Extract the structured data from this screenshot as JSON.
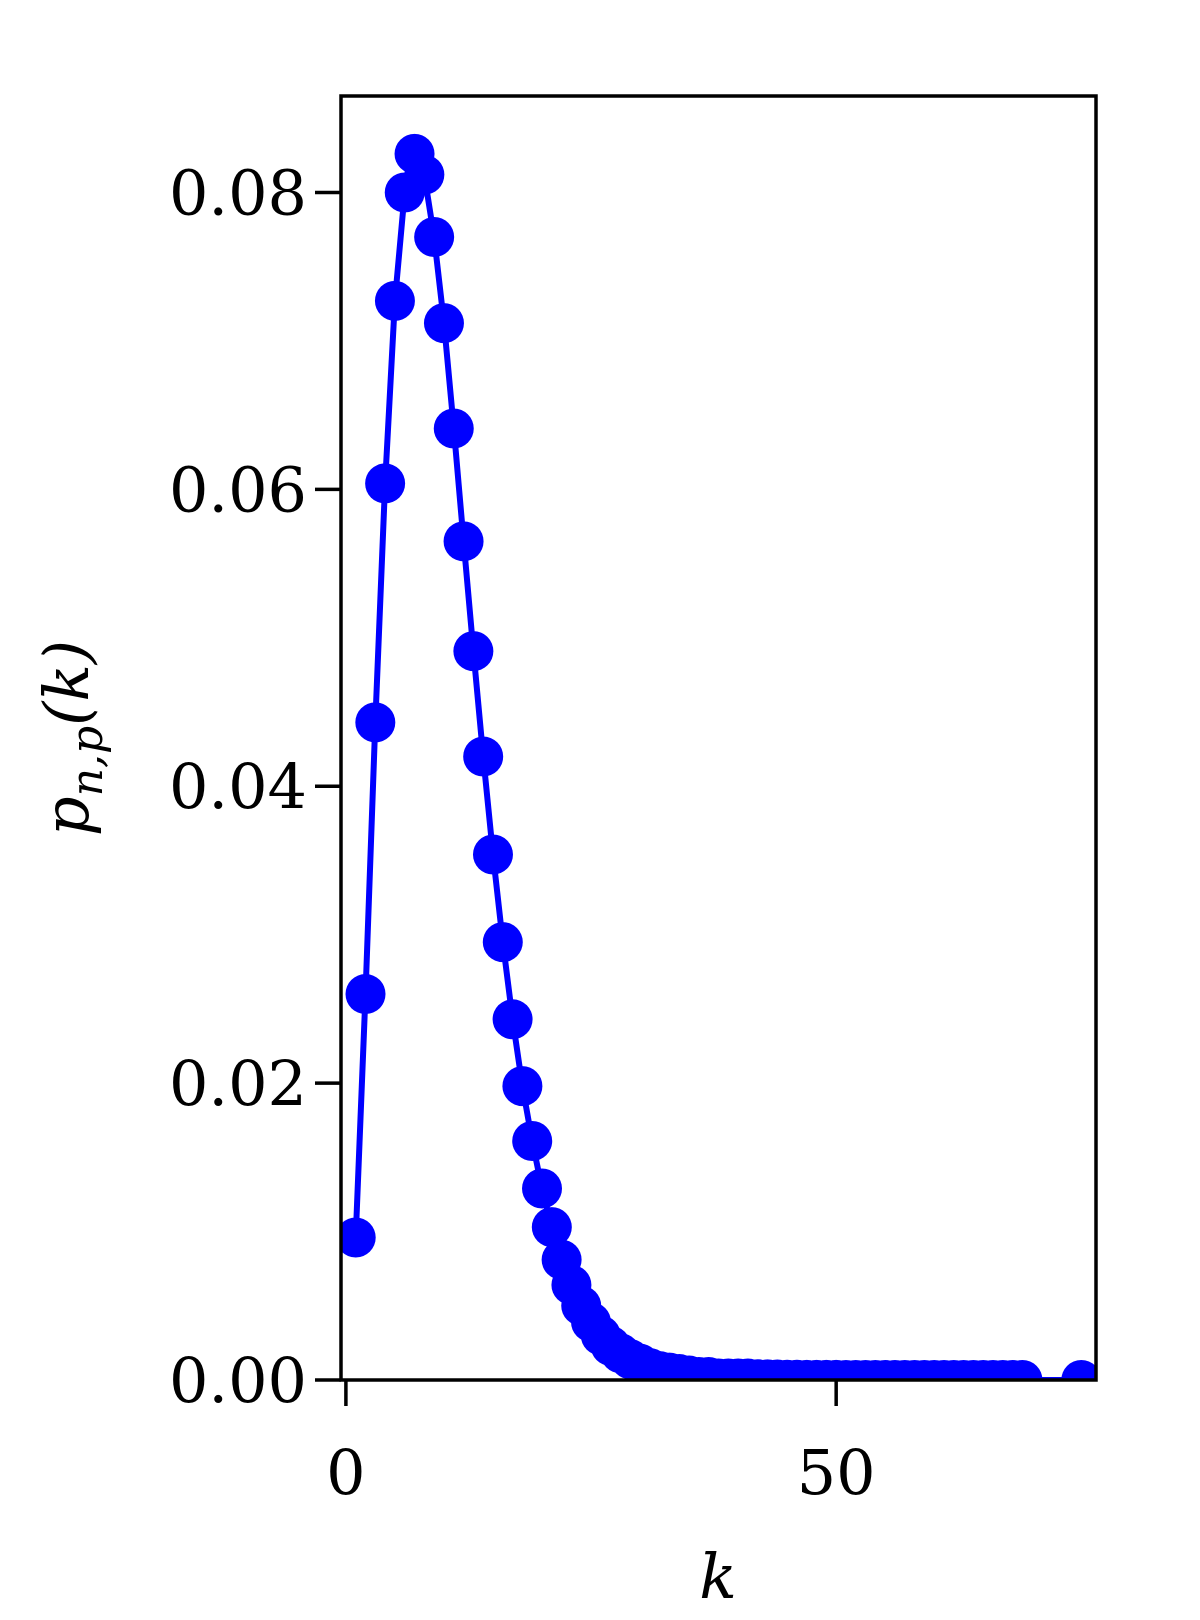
{
  "chart_data": {
    "type": "line",
    "title": "",
    "xlabel": "k",
    "ylabel": "p_{n,p}(k)",
    "xlim": [
      -0.5,
      76.5
    ],
    "ylim": [
      0,
      0.0865
    ],
    "xticks": [
      0,
      50
    ],
    "xtick_labels": [
      "0",
      "50"
    ],
    "yticks": [
      0,
      0.02,
      0.04,
      0.06,
      0.08
    ],
    "ytick_labels": [
      "0.00",
      "0.02",
      "0.04",
      "0.06",
      "0.08"
    ],
    "grid": false,
    "legend": "none",
    "color": "#0000ff",
    "series": [
      {
        "x": [
          1,
          2,
          3,
          4,
          5,
          6,
          7,
          8,
          9,
          10,
          11,
          12,
          13,
          14,
          15,
          16,
          17,
          18,
          19,
          20,
          21,
          22,
          23,
          24,
          25,
          26,
          27,
          28,
          29,
          30,
          31,
          32,
          33,
          34,
          35,
          36,
          37,
          38,
          39,
          40,
          41,
          42,
          43,
          44,
          45,
          46,
          47,
          48,
          49,
          50,
          51,
          52,
          53,
          54,
          55,
          56,
          57,
          58,
          59,
          60,
          61,
          62,
          63,
          64,
          65,
          66,
          67,
          68,
          69,
          75
        ],
        "y": [
          0.0096,
          0.026,
          0.0443,
          0.0604,
          0.0727,
          0.08,
          0.0826,
          0.0812,
          0.077,
          0.0712,
          0.0641,
          0.0565,
          0.0491,
          0.042,
          0.0354,
          0.0295,
          0.0243,
          0.0198,
          0.0161,
          0.0129,
          0.0103,
          0.0081,
          0.0064,
          0.005,
          0.0039,
          0.003,
          0.0023,
          0.0018,
          0.0014,
          0.0011,
          0.0008,
          0.0006,
          0.0005,
          0.0004,
          0.0003,
          0.0002,
          0.0002,
          0.0001,
          0.0001,
          0.0001,
          0.0001,
          5e-05,
          4e-05,
          3e-05,
          2e-05,
          2e-05,
          1e-05,
          1e-05,
          1e-05,
          1e-05,
          0,
          0,
          0,
          0,
          0,
          0,
          0,
          0,
          0,
          0,
          0,
          0,
          0,
          0,
          0,
          0,
          0,
          0,
          0,
          0
        ]
      }
    ]
  }
}
